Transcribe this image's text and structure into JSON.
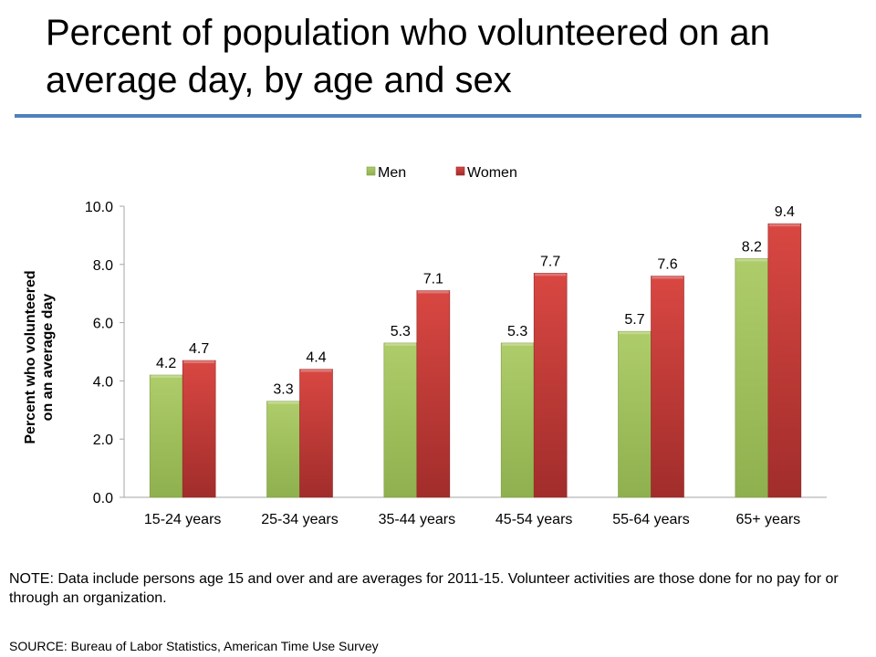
{
  "page": {
    "title": "Percent of population who volunteered on an average day, by age and sex",
    "note": "NOTE: Data include persons age 15 and over and are averages for 2011-15. Volunteer activities are those done for no pay for or through an organization.",
    "source": "SOURCE: Bureau of Labor Statistics, American Time Use Survey",
    "accent_color": "#4f81bd"
  },
  "chart_data": {
    "type": "bar",
    "title": "",
    "xlabel": "",
    "ylabel": "Percent who volunteered on an average day",
    "ylabel_lines": [
      "Percent who volunteered",
      "on an average day"
    ],
    "ylim": [
      0,
      10
    ],
    "yticks": [
      "0.0",
      "2.0",
      "4.0",
      "6.0",
      "8.0",
      "10.0"
    ],
    "ytick_values": [
      0,
      2,
      4,
      6,
      8,
      10
    ],
    "grid": false,
    "legend_position": "top-center",
    "categories": [
      "15-24 years",
      "25-34 years",
      "35-44 years",
      "45-54 years",
      "55-64 years",
      "65+ years"
    ],
    "series": [
      {
        "name": "Men",
        "color": "#9bbb59",
        "values": [
          4.2,
          3.3,
          5.3,
          5.3,
          5.7,
          8.2
        ],
        "labels": [
          "4.2",
          "3.3",
          "5.3",
          "5.3",
          "5.7",
          "8.2"
        ]
      },
      {
        "name": "Women",
        "color": "#c0504d",
        "values": [
          4.7,
          4.4,
          7.1,
          7.7,
          7.6,
          9.4
        ],
        "labels": [
          "4.7",
          "4.4",
          "7.1",
          "7.7",
          "7.6",
          "9.4"
        ]
      }
    ]
  }
}
